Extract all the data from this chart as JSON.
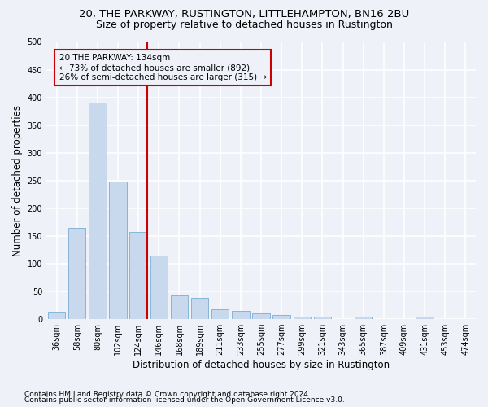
{
  "title": "20, THE PARKWAY, RUSTINGTON, LITTLEHAMPTON, BN16 2BU",
  "subtitle": "Size of property relative to detached houses in Rustington",
  "xlabel": "Distribution of detached houses by size in Rustington",
  "ylabel": "Number of detached properties",
  "categories": [
    "36sqm",
    "58sqm",
    "80sqm",
    "102sqm",
    "124sqm",
    "146sqm",
    "168sqm",
    "189sqm",
    "211sqm",
    "233sqm",
    "255sqm",
    "277sqm",
    "299sqm",
    "321sqm",
    "343sqm",
    "365sqm",
    "387sqm",
    "409sqm",
    "431sqm",
    "453sqm",
    "474sqm"
  ],
  "values": [
    13,
    165,
    390,
    248,
    157,
    115,
    43,
    39,
    18,
    15,
    10,
    8,
    5,
    4,
    0,
    5,
    0,
    0,
    5,
    0,
    0
  ],
  "bar_color": "#c8d9ee",
  "bar_edge_color": "#7aaed4",
  "ref_line_color": "#cc0000",
  "annotation_line1": "20 THE PARKWAY: 134sqm",
  "annotation_line2": "← 73% of detached houses are smaller (892)",
  "annotation_line3": "26% of semi-detached houses are larger (315) →",
  "annotation_box_color": "#cc0000",
  "ylim": [
    0,
    500
  ],
  "yticks": [
    0,
    50,
    100,
    150,
    200,
    250,
    300,
    350,
    400,
    450,
    500
  ],
  "footnote1": "Contains HM Land Registry data © Crown copyright and database right 2024.",
  "footnote2": "Contains public sector information licensed under the Open Government Licence v3.0.",
  "bg_color": "#eef2f8",
  "grid_color": "#ffffff",
  "title_fontsize": 9.5,
  "subtitle_fontsize": 9,
  "axis_label_fontsize": 8.5,
  "tick_fontsize": 7,
  "footnote_fontsize": 6.5,
  "annotation_fontsize": 7.5
}
